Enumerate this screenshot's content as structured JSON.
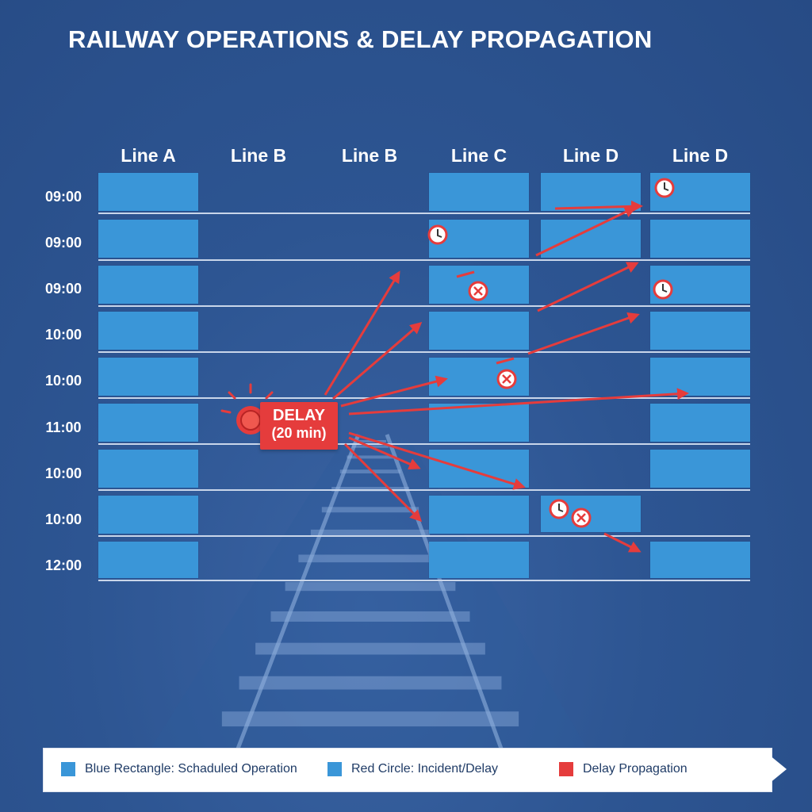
{
  "title": "RAILWAY OPERATIONS & DELAY PROPAGATION",
  "columns": [
    "Line A",
    "Line B",
    "Line B",
    "Line C",
    "Line D",
    "Line D"
  ],
  "rows": [
    "09:00",
    "09:00",
    "09:00",
    "10:00",
    "10:00",
    "11:00",
    "10:00",
    "10:00",
    "12:00"
  ],
  "incident": {
    "label_line1": "DELAY",
    "label_line2": "(20 min)"
  },
  "legend": {
    "items": [
      {
        "label": "Blue Rectangle: Schaduled Operation",
        "color": "#3a96d8"
      },
      {
        "label": "Red Circle: Incident/Delay",
        "color": "#3a96d8"
      },
      {
        "label": "Delay Propagation",
        "color": "#e53c3c"
      }
    ]
  },
  "colors": {
    "background": "#2d5592",
    "cell": "#3a96d8",
    "delay": "#e53c3c",
    "grid": "#c9d6ea"
  },
  "icons": [
    "clock-icon",
    "x-circle-icon",
    "incident-icon",
    "railway-track-icon"
  ]
}
